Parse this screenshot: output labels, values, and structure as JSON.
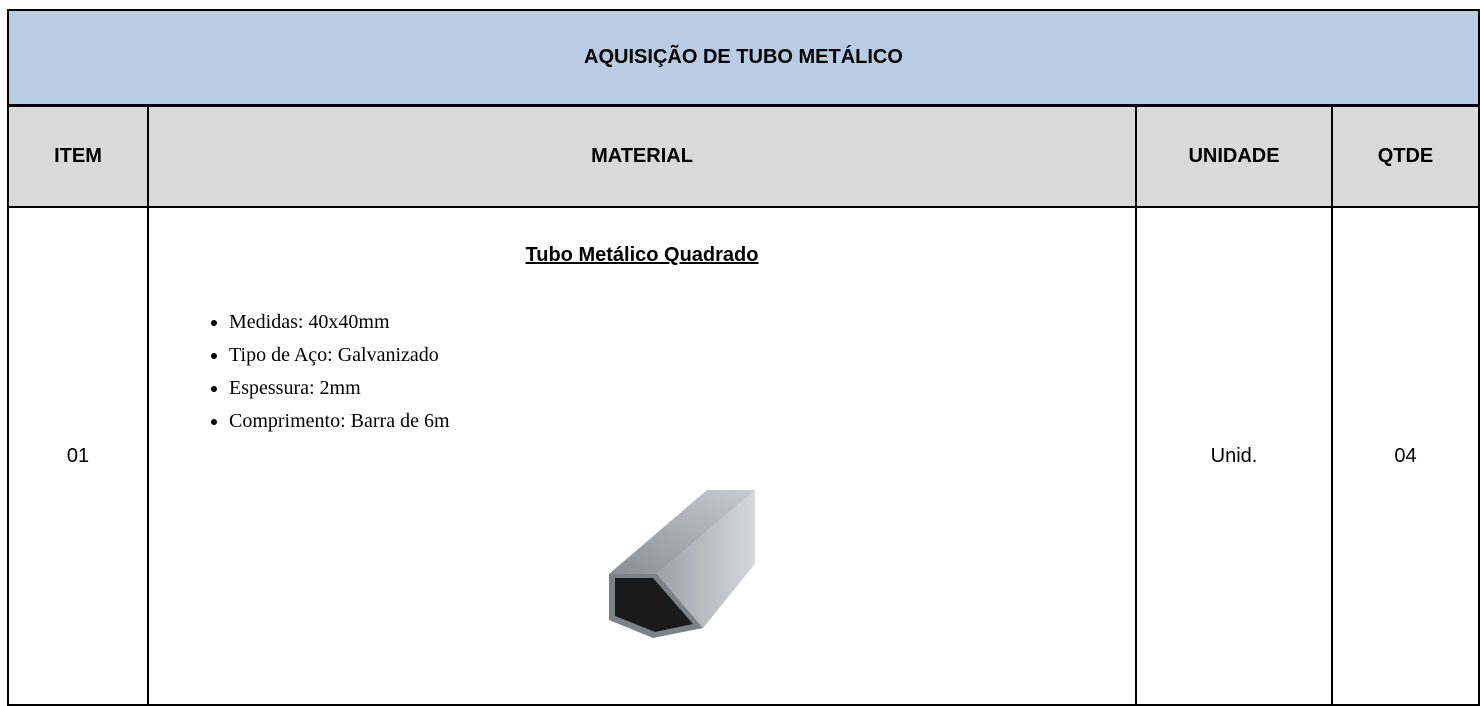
{
  "header": {
    "title": "AQUISIÇÃO DE TUBO METÁLICO"
  },
  "table": {
    "columns": [
      "ITEM",
      "MATERIAL",
      "UNIDADE",
      "QTDE"
    ],
    "rows": [
      {
        "item": "01",
        "material_title": "Tubo Metálico Quadrado",
        "specs": [
          "Medidas: 40x40mm",
          "Tipo de Aço: Galvanizado",
          "Espessura: 2mm",
          "Comprimento: Barra de 6m"
        ],
        "unit": "Unid.",
        "quantity": "04"
      }
    ]
  }
}
